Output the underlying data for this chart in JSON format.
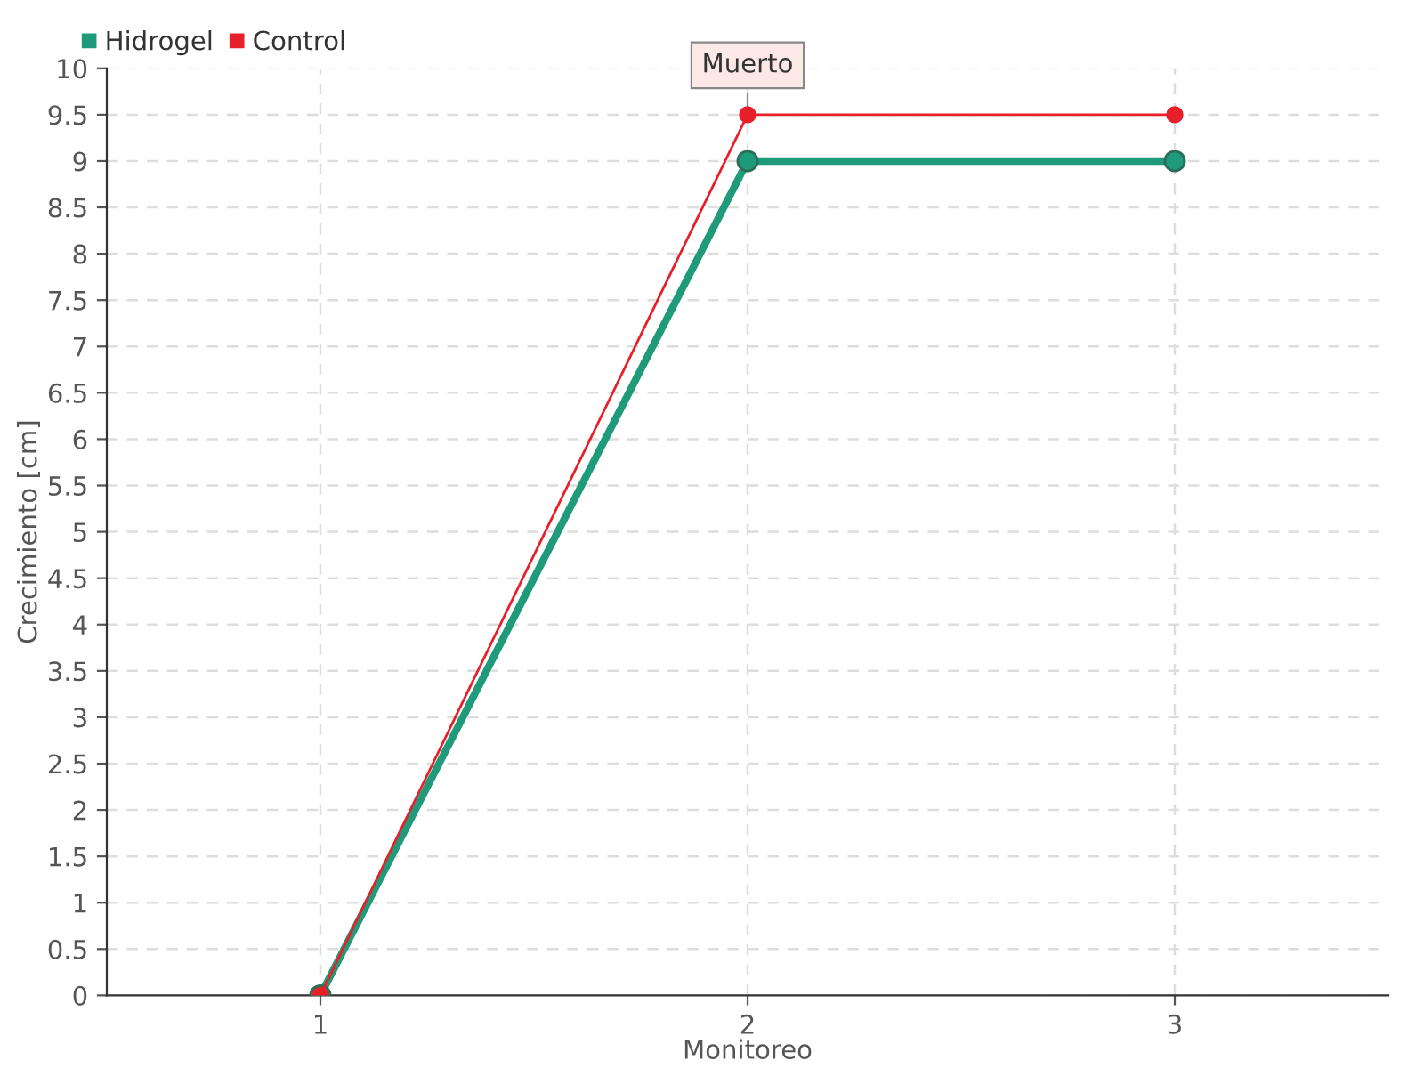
{
  "chart_data": {
    "type": "line",
    "xlabel": "Monitoreo",
    "ylabel": "Crecimiento [cm]",
    "categories": [
      "1",
      "2",
      "3"
    ],
    "series": [
      {
        "name": "Hidrogel",
        "color": "#1f9a7a",
        "values": [
          0,
          9,
          9
        ]
      },
      {
        "name": "Control",
        "color": "#e8202a",
        "values": [
          0,
          9.5,
          9.5
        ]
      }
    ],
    "ylim": [
      0,
      10
    ],
    "yticks": [
      0,
      0.5,
      1,
      1.5,
      2,
      2.5,
      3,
      3.5,
      4,
      4.5,
      5,
      5.5,
      6,
      6.5,
      7,
      7.5,
      8,
      8.5,
      9,
      9.5,
      10
    ],
    "annotations": [
      {
        "text": "Muerto",
        "x": "2",
        "y": 9.5
      }
    ],
    "grid": true,
    "legend": "top left",
    "marker": "circle",
    "line_style": "solid"
  }
}
